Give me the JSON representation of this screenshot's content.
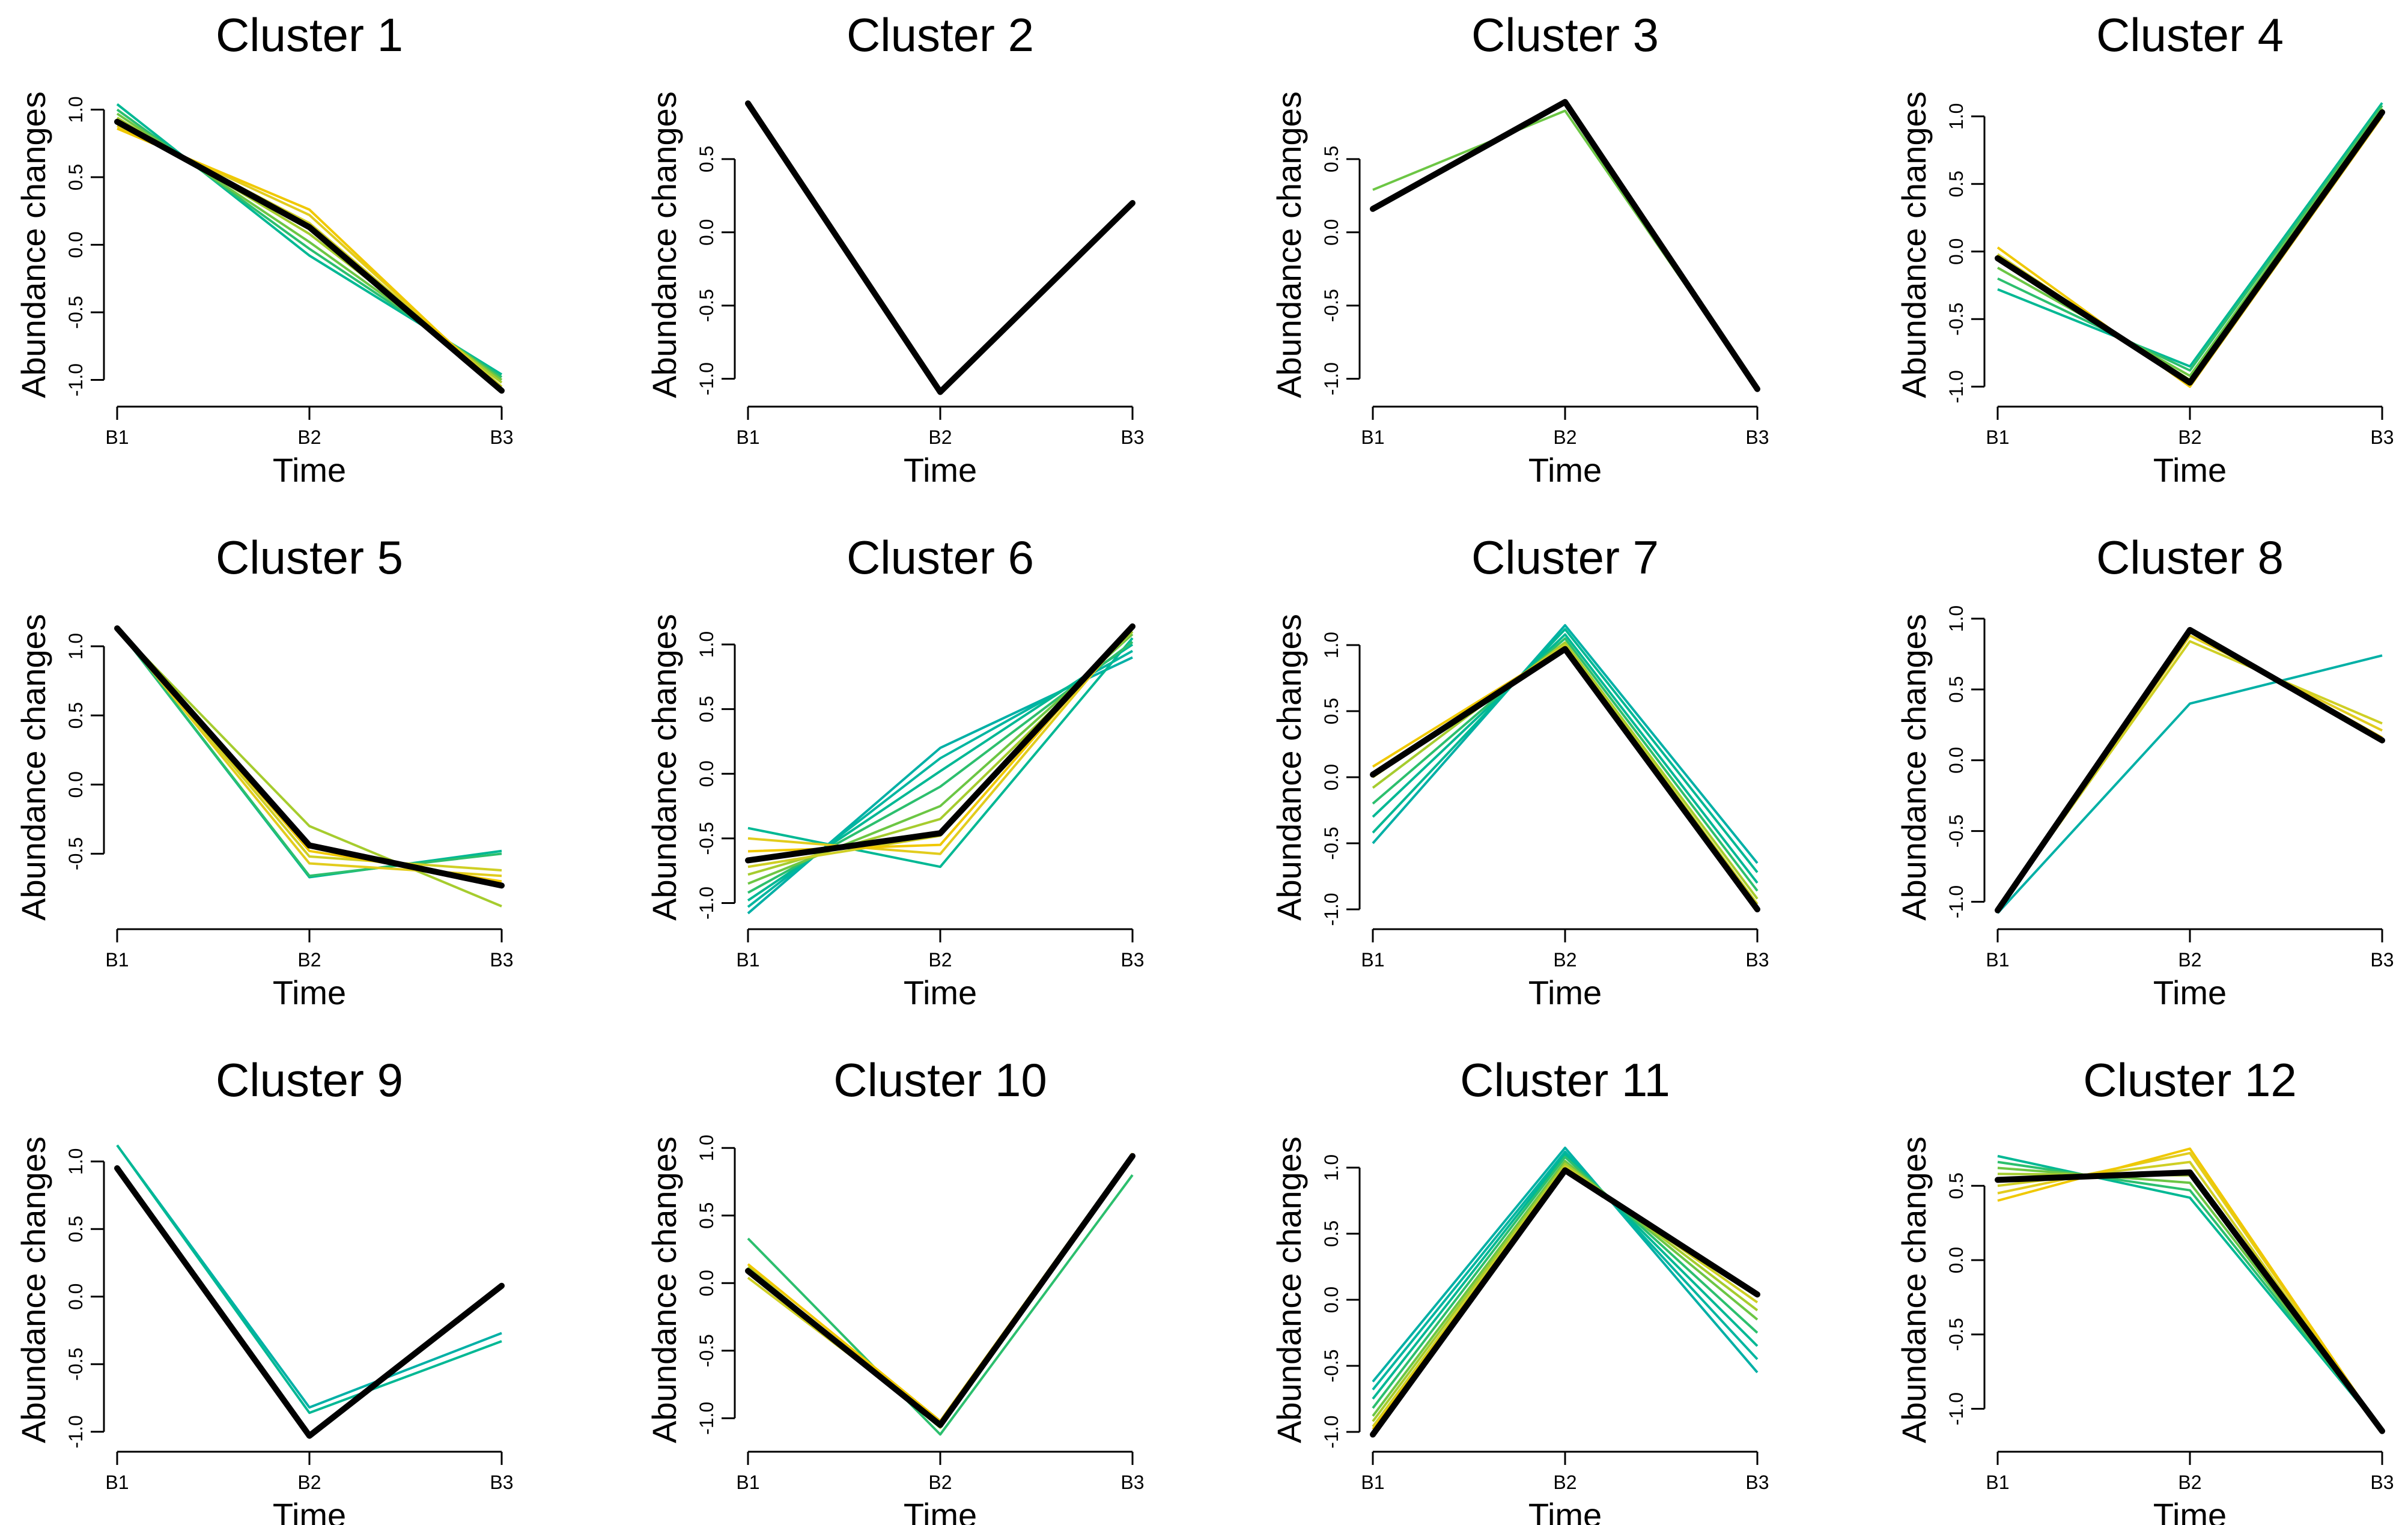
{
  "figure": {
    "type": "line",
    "chart_data": [
      {
        "title": "Cluster 1",
        "xlabel": "Time",
        "ylabel": "Abundance changes",
        "categories": [
          "B1",
          "B2",
          "B3"
        ],
        "y_ticks": [
          -1.0,
          -0.5,
          0.0,
          0.5,
          1.0
        ],
        "ylim": [
          -1.1,
          1.1
        ],
        "centroid": [
          0.91,
          0.13,
          -1.08
        ],
        "series": [
          {
            "color": "#00b894",
            "values": [
              1.04,
              -0.08,
              -0.96
            ]
          },
          {
            "color": "#2cbf6e",
            "values": [
              1.0,
              -0.03,
              -0.98
            ]
          },
          {
            "color": "#6cc644",
            "values": [
              0.97,
              0.02,
              -1.0
            ]
          },
          {
            "color": "#a6cc2e",
            "values": [
              0.94,
              0.08,
              -1.02
            ]
          },
          {
            "color": "#cfcf25",
            "values": [
              0.9,
              0.16,
              -1.05
            ]
          },
          {
            "color": "#e2cc1d",
            "values": [
              0.88,
              0.22,
              -1.07
            ]
          },
          {
            "color": "#f0c800",
            "values": [
              0.86,
              0.26,
              -1.09
            ]
          }
        ]
      },
      {
        "title": "Cluster 2",
        "xlabel": "Time",
        "ylabel": "Abundance changes",
        "categories": [
          "B1",
          "B2",
          "B3"
        ],
        "y_ticks": [
          -1.0,
          -0.5,
          0.0,
          0.5
        ],
        "ylim": [
          -1.1,
          0.93
        ],
        "centroid": [
          0.88,
          -1.09,
          0.2
        ],
        "series": [
          {
            "color": "#f0c800",
            "values": [
              0.88,
              -1.09,
              0.21
            ]
          }
        ]
      },
      {
        "title": "Cluster 3",
        "xlabel": "Time",
        "ylabel": "Abundance changes",
        "categories": [
          "B1",
          "B2",
          "B3"
        ],
        "y_ticks": [
          -1.0,
          -0.5,
          0.0,
          0.5
        ],
        "ylim": [
          -1.1,
          0.93
        ],
        "centroid": [
          0.16,
          0.89,
          -1.07
        ],
        "series": [
          {
            "color": "#6cc644",
            "values": [
              0.29,
              0.83,
              -1.07
            ]
          }
        ]
      },
      {
        "title": "Cluster 4",
        "xlabel": "Time",
        "ylabel": "Abundance changes",
        "categories": [
          "B1",
          "B2",
          "B3"
        ],
        "y_ticks": [
          -1.0,
          -0.5,
          0.0,
          0.5,
          1.0
        ],
        "ylim": [
          -1.05,
          1.15
        ],
        "centroid": [
          -0.05,
          -0.97,
          1.03
        ],
        "series": [
          {
            "color": "#00b894",
            "values": [
              -0.28,
              -0.85,
              1.1
            ]
          },
          {
            "color": "#2cbf6e",
            "values": [
              -0.2,
              -0.88,
              1.08
            ]
          },
          {
            "color": "#6cc644",
            "values": [
              -0.12,
              -0.92,
              1.06
            ]
          },
          {
            "color": "#a6cc2e",
            "values": [
              -0.06,
              -0.95,
              1.04
            ]
          },
          {
            "color": "#cfcf25",
            "values": [
              -0.02,
              -0.98,
              1.02
            ]
          },
          {
            "color": "#f0c800",
            "values": [
              0.03,
              -1.0,
              1.0
            ]
          }
        ]
      },
      {
        "title": "Cluster 5",
        "xlabel": "Time",
        "ylabel": "Abundance changes",
        "categories": [
          "B1",
          "B2",
          "B3"
        ],
        "y_ticks": [
          -0.5,
          0.0,
          0.5,
          1.0
        ],
        "ylim": [
          -0.95,
          1.2
        ],
        "centroid": [
          1.13,
          -0.44,
          -0.73
        ],
        "series": [
          {
            "color": "#00b894",
            "values": [
              1.13,
              -0.67,
              -0.48
            ]
          },
          {
            "color": "#2cbf6e",
            "values": [
              1.13,
              -0.66,
              -0.5
            ]
          },
          {
            "color": "#a6cc2e",
            "values": [
              1.13,
              -0.3,
              -0.88
            ]
          },
          {
            "color": "#cfcf25",
            "values": [
              1.13,
              -0.52,
              -0.62
            ]
          },
          {
            "color": "#e2cc1d",
            "values": [
              1.13,
              -0.57,
              -0.66
            ]
          },
          {
            "color": "#f0c800",
            "values": [
              1.13,
              -0.48,
              -0.7
            ]
          }
        ]
      },
      {
        "title": "Cluster 6",
        "xlabel": "Time",
        "ylabel": "Abundance changes",
        "categories": [
          "B1",
          "B2",
          "B3"
        ],
        "y_ticks": [
          -1.0,
          -0.5,
          0.0,
          0.5,
          1.0
        ],
        "ylim": [
          -1.1,
          1.2
        ],
        "centroid": [
          -0.67,
          -0.46,
          1.14
        ],
        "series": [
          {
            "color": "#00b0a6",
            "values": [
              -1.08,
              0.2,
              0.9
            ]
          },
          {
            "color": "#00b6a0",
            "values": [
              -1.03,
              0.12,
              0.95
            ]
          },
          {
            "color": "#00b894",
            "values": [
              -0.98,
              0.02,
              1.0
            ]
          },
          {
            "color": "#00b894",
            "values": [
              -0.42,
              -0.72,
              1.05
            ]
          },
          {
            "color": "#2cbf6e",
            "values": [
              -0.92,
              -0.1,
              1.02
            ]
          },
          {
            "color": "#6cc644",
            "values": [
              -0.85,
              -0.25,
              1.08
            ]
          },
          {
            "color": "#a6cc2e",
            "values": [
              -0.78,
              -0.35,
              1.1
            ]
          },
          {
            "color": "#cfcf25",
            "values": [
              -0.72,
              -0.48,
              1.12
            ]
          },
          {
            "color": "#e2cc1d",
            "values": [
              -0.5,
              -0.62,
              1.14
            ]
          },
          {
            "color": "#f0c800",
            "values": [
              -0.6,
              -0.55,
              1.15
            ]
          }
        ]
      },
      {
        "title": "Cluster 7",
        "xlabel": "Time",
        "ylabel": "Abundance changes",
        "categories": [
          "B1",
          "B2",
          "B3"
        ],
        "y_ticks": [
          -1.0,
          -0.5,
          0.0,
          0.5,
          1.0
        ],
        "ylim": [
          -1.05,
          1.2
        ],
        "centroid": [
          0.02,
          0.97,
          -1.0
        ],
        "series": [
          {
            "color": "#00b0a6",
            "values": [
              -0.5,
              1.15,
              -0.65
            ]
          },
          {
            "color": "#00b894",
            "values": [
              -0.42,
              1.12,
              -0.72
            ]
          },
          {
            "color": "#00b894",
            "values": [
              -0.3,
              1.08,
              -0.8
            ]
          },
          {
            "color": "#2cbf6e",
            "values": [
              -0.2,
              1.05,
              -0.86
            ]
          },
          {
            "color": "#a6cc2e",
            "values": [
              -0.08,
              1.02,
              -0.92
            ]
          },
          {
            "color": "#cfcf25",
            "values": [
              0.0,
              1.0,
              -0.96
            ]
          },
          {
            "color": "#f0c800",
            "values": [
              0.08,
              0.98,
              -0.99
            ]
          }
        ]
      },
      {
        "title": "Cluster 8",
        "xlabel": "Time",
        "ylabel": "Abundance changes",
        "categories": [
          "B1",
          "B2",
          "B3"
        ],
        "y_ticks": [
          -1.0,
          -0.5,
          0.0,
          0.5,
          1.0
        ],
        "ylim": [
          -1.1,
          1.0
        ],
        "centroid": [
          -1.06,
          0.92,
          0.14
        ],
        "series": [
          {
            "color": "#00b0a6",
            "values": [
              -1.08,
              0.4,
              0.74
            ]
          },
          {
            "color": "#cfcf25",
            "values": [
              -1.06,
              0.84,
              0.26
            ]
          },
          {
            "color": "#e2cc1d",
            "values": [
              -1.06,
              0.88,
              0.21
            ]
          },
          {
            "color": "#f0c800",
            "values": [
              -1.06,
              0.92,
              0.16
            ]
          }
        ]
      },
      {
        "title": "Cluster 9",
        "xlabel": "Time",
        "ylabel": "Abundance changes",
        "categories": [
          "B1",
          "B2",
          "B3"
        ],
        "y_ticks": [
          -1.0,
          -0.5,
          0.0,
          0.5,
          1.0
        ],
        "ylim": [
          -1.05,
          1.15
        ],
        "centroid": [
          0.95,
          -1.03,
          0.08
        ],
        "series": [
          {
            "color": "#00b0a6",
            "values": [
              1.12,
              -0.82,
              -0.27
            ]
          },
          {
            "color": "#00b894",
            "values": [
              1.12,
              -0.86,
              -0.33
            ]
          },
          {
            "color": "#f0c800",
            "values": [
              0.95,
              -1.03,
              0.09
            ]
          }
        ]
      },
      {
        "title": "Cluster 10",
        "xlabel": "Time",
        "ylabel": "Abundance changes",
        "categories": [
          "B1",
          "B2",
          "B3"
        ],
        "y_ticks": [
          -1.0,
          -0.5,
          0.0,
          0.5,
          1.0
        ],
        "ylim": [
          -1.15,
          1.05
        ],
        "centroid": [
          0.09,
          -1.05,
          0.94
        ],
        "series": [
          {
            "color": "#2cbf6e",
            "values": [
              0.33,
              -1.12,
              0.8
            ]
          },
          {
            "color": "#a6cc2e",
            "values": [
              0.12,
              -1.07,
              0.92
            ]
          },
          {
            "color": "#cfcf25",
            "values": [
              0.04,
              -1.04,
              0.95
            ]
          },
          {
            "color": "#f0c800",
            "values": [
              0.14,
              -1.02,
              0.96
            ]
          }
        ]
      },
      {
        "title": "Cluster 11",
        "xlabel": "Time",
        "ylabel": "Abundance changes",
        "categories": [
          "B1",
          "B2",
          "B3"
        ],
        "y_ticks": [
          -1.0,
          -0.5,
          0.0,
          0.5,
          1.0
        ],
        "ylim": [
          -1.05,
          1.2
        ],
        "centroid": [
          -1.02,
          0.98,
          0.04
        ],
        "series": [
          {
            "color": "#00b0a6",
            "values": [
              -0.62,
              1.15,
              -0.55
            ]
          },
          {
            "color": "#00b6a0",
            "values": [
              -0.68,
              1.12,
              -0.45
            ]
          },
          {
            "color": "#00b894",
            "values": [
              -0.75,
              1.1,
              -0.35
            ]
          },
          {
            "color": "#2cbf6e",
            "values": [
              -0.82,
              1.08,
              -0.25
            ]
          },
          {
            "color": "#6cc644",
            "values": [
              -0.88,
              1.05,
              -0.15
            ]
          },
          {
            "color": "#a6cc2e",
            "values": [
              -0.92,
              1.03,
              -0.08
            ]
          },
          {
            "color": "#cfcf25",
            "values": [
              -0.96,
              1.01,
              -0.02
            ]
          },
          {
            "color": "#f0c800",
            "values": [
              -0.98,
              0.99,
              0.03
            ]
          }
        ]
      },
      {
        "title": "Cluster 12",
        "xlabel": "Time",
        "ylabel": "Abundance changes",
        "categories": [
          "B1",
          "B2",
          "B3"
        ],
        "y_ticks": [
          -1.0,
          -0.5,
          0.0,
          0.5
        ],
        "ylim": [
          -1.2,
          0.8
        ],
        "centroid": [
          0.54,
          0.59,
          -1.15
        ],
        "series": [
          {
            "color": "#00b894",
            "values": [
              0.7,
              0.42,
              -1.15
            ]
          },
          {
            "color": "#2cbf6e",
            "values": [
              0.66,
              0.47,
              -1.15
            ]
          },
          {
            "color": "#6cc644",
            "values": [
              0.62,
              0.52,
              -1.15
            ]
          },
          {
            "color": "#a6cc2e",
            "values": [
              0.58,
              0.57,
              -1.15
            ]
          },
          {
            "color": "#cfcf25",
            "values": [
              0.5,
              0.66,
              -1.15
            ]
          },
          {
            "color": "#e2cc1d",
            "values": [
              0.45,
              0.72,
              -1.15
            ]
          },
          {
            "color": "#f0c800",
            "values": [
              0.4,
              0.75,
              -1.15
            ]
          }
        ]
      }
    ]
  }
}
